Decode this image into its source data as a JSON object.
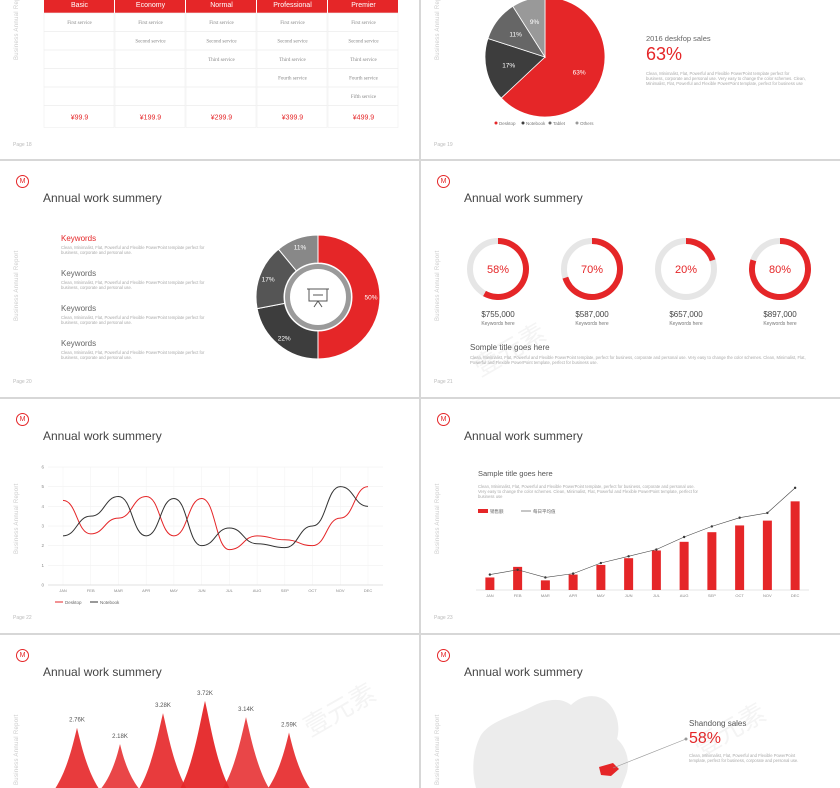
{
  "common": {
    "title": "Annual work summery",
    "vertical_label": "Business Annual Report",
    "logo": "M",
    "colors": {
      "red": "#e52628",
      "dark": "#3d3d3d",
      "gray": "#666666",
      "light": "#e8e8e8"
    }
  },
  "pricing": {
    "plans": [
      {
        "name": "Basic",
        "services": [
          "First service"
        ],
        "price": "¥99.9"
      },
      {
        "name": "Economy",
        "services": [
          "First service",
          "Second service"
        ],
        "price": "¥199.9"
      },
      {
        "name": "Normal",
        "services": [
          "First service",
          "Second service",
          "Third service"
        ],
        "price": "¥299.9"
      },
      {
        "name": "Professional",
        "services": [
          "First service",
          "Second service",
          "Third service",
          "Fourth service"
        ],
        "price": "¥399.9"
      },
      {
        "name": "Premier",
        "services": [
          "First service",
          "Second service",
          "Third service",
          "Fourth service",
          "Fifth service"
        ],
        "price": "¥499.9"
      }
    ],
    "page": "Page 18"
  },
  "pie_slide": {
    "subtitle": "2016 deskfop sales",
    "value": "63%",
    "desc": "Clean, Minimalist, Flat, Powerful and Flexible PowerPoint template perfect for business, corporate and personal use. Very easy to change the color schemes. Clean, Minimalist, Flat, Powerful and Flexible PowerPoint template, perfect for business use",
    "page": "Page 19"
  },
  "keywords_slide": {
    "items": [
      {
        "title": "Keywords",
        "desc": "Clean, Minimalist, Flat, Powerful and Flexible PowerPoint template perfect for business, corporate and personal use."
      },
      {
        "title": "Keywords",
        "desc": "Clean, Minimalist, Flat, Powerful and Flexible PowerPoint template perfect for business, corporate and personal use."
      },
      {
        "title": "Keywords",
        "desc": "Clean, Minimalist, Flat, Powerful and Flexible PowerPoint template perfect for business, corporate and personal use."
      },
      {
        "title": "Keywords",
        "desc": "Clean, Minimalist, Flat, Powerful and Flexible PowerPoint template perfect for business, corporate and personal use."
      }
    ],
    "page": "Page 20"
  },
  "rings_slide": {
    "rings": [
      {
        "pct": "58%",
        "frac": 0.58,
        "amount": "$755,000",
        "label": "Keywords here",
        "color": "#e52628"
      },
      {
        "pct": "70%",
        "frac": 0.7,
        "amount": "$587,000",
        "label": "Keywords here",
        "color": "#e52628"
      },
      {
        "pct": "20%",
        "frac": 0.2,
        "amount": "$657,000",
        "label": "Keywords here",
        "color": "#e52628"
      },
      {
        "pct": "80%",
        "frac": 0.8,
        "amount": "$897,000",
        "label": "Keywords here",
        "color": "#e52628"
      }
    ],
    "sample_title": "Somple title goes here",
    "sample_desc": "Clean, Minimalist, Flat, Powerful and Flexible PowerPoint template, perfect for business, corporate and personal use. Very easy to change the color schemes. Clean, Minimalist, Flat, Powerful and Flexible PowerPoint template, perfect for business use.",
    "page": "Page 21"
  },
  "bar_slide": {
    "title": "Sample title goes here",
    "desc": "Clean, Minimalist, Flat, Powerful and Flexible PowerPoint template, perfect for business, corporate and personal use. Very easy to change the color schemes. Clean, Minimalist, Flat, Powerful and Flexible PowerPoint template, perfect for business use",
    "legend_bar": "销售额",
    "legend_line": "每日平均值",
    "page": "Page 23"
  },
  "line_slide": {
    "page": "Page 22"
  },
  "map_slide": {
    "region": "Shandong sales",
    "value": "58%",
    "desc": "Clean, Minimalist, Flat, Powerful and Flexible PowerPoint template, perfect for business, corporate and personal use."
  },
  "watermark": "壹元素",
  "chart_data": [
    {
      "type": "pie",
      "values": [
        63,
        17,
        11,
        9
      ],
      "labels": [
        "63%",
        "17%",
        "11%",
        "9%"
      ],
      "legend": [
        "Desktop",
        "Notebook",
        "Tablet",
        "Others"
      ],
      "colors": [
        "#e52628",
        "#3d3d3d",
        "#666666",
        "#999999"
      ]
    },
    {
      "type": "pie",
      "values": [
        50,
        22,
        17,
        11
      ],
      "labels": [
        "50%",
        "22%",
        "17%",
        "11%"
      ],
      "colors": [
        "#e52628",
        "#3d3d3d",
        "#555555",
        "#888888"
      ],
      "center_icon": "presentation-icon"
    },
    {
      "type": "line",
      "categories": [
        "JAN",
        "FEB",
        "MAR",
        "APR",
        "MAY",
        "JUN",
        "JUL",
        "AUG",
        "SEP",
        "OCT",
        "NOV",
        "DEC"
      ],
      "series": [
        {
          "name": "Desktop",
          "values": [
            4.3,
            2.6,
            3.4,
            4.5,
            2.5,
            4.4,
            1.8,
            2.5,
            2.3,
            2.0,
            3.4,
            5.0
          ],
          "color": "#e52628"
        },
        {
          "name": "Notebook",
          "values": [
            2.5,
            3.5,
            4.5,
            2.5,
            4.4,
            2.0,
            2.9,
            2.1,
            1.9,
            3.0,
            5.0,
            4.0
          ],
          "color": "#333333"
        }
      ],
      "ylim": [
        0,
        6
      ],
      "yticks": [
        "0",
        "1",
        "2",
        "3",
        "4",
        "5",
        "6"
      ]
    },
    {
      "type": "bar",
      "categories": [
        "JAN",
        "FEB",
        "MAR",
        "APR",
        "MAY",
        "JUN",
        "JUL",
        "AUG",
        "SEP",
        "OCT",
        "NOV",
        "DEC"
      ],
      "values": [
        1.3,
        2.4,
        1.0,
        1.6,
        2.6,
        3.3,
        4.1,
        5.0,
        6.0,
        6.7,
        7.2,
        9.2
      ],
      "line_values": [
        1.6,
        2.1,
        1.3,
        1.7,
        2.8,
        3.5,
        4.2,
        5.5,
        6.6,
        7.5,
        8.0,
        10.6
      ],
      "ylim": [
        0,
        11
      ]
    },
    {
      "type": "area",
      "values": [
        "2.76K",
        "2.18K",
        "3.28K",
        "3.72K",
        "3.14K",
        "2.59K"
      ],
      "numeric": [
        2.76,
        2.18,
        3.28,
        3.72,
        3.14,
        2.59
      ]
    }
  ]
}
